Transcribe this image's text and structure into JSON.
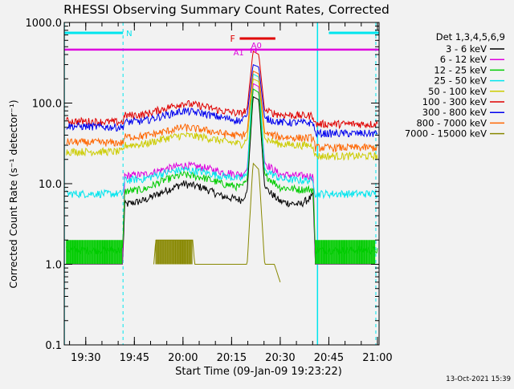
{
  "chart_data": {
    "type": "line",
    "title": "RHESSI Observing Summary Count Rates, Corrected",
    "xlabel": "Start Time (09-Jan-09 19:23:22)",
    "ylabel": "Corrected Count Rate (s⁻¹ detector⁻¹)",
    "yscale": "log",
    "ylim": [
      0.1,
      1000
    ],
    "xlim": [
      "19:23:22",
      "21:00:30"
    ],
    "xticks": [
      "19:30",
      "19:45",
      "20:00",
      "20:15",
      "20:30",
      "20:45",
      "21:00"
    ],
    "yticks": [
      "0.1",
      "1.0",
      "10.0",
      "100.0",
      "1000.0"
    ],
    "legend_title": "Det 1,3,4,5,6,9",
    "legend_position": "right",
    "grid": false,
    "footer_date": "13-Oct-2021 15:39",
    "flags": {
      "night": {
        "label": "N",
        "intervals": [
          [
            "19:23:22",
            "19:41:30"
          ],
          [
            "20:45:00",
            "21:00:30"
          ]
        ],
        "color": "#00e5ee"
      },
      "attenuator_level": 460,
      "flare": {
        "label": "F",
        "interval": [
          "20:17:30",
          "20:28:30"
        ],
        "color": "#e00000"
      },
      "attenuator": {
        "labels": [
          "A1",
          "A0"
        ],
        "marks": [
          "20:21:00",
          "20:22:30"
        ],
        "color": "#dd00dd"
      }
    },
    "shutter_markers": {
      "solid": [
        "19:23:22",
        "20:41:30"
      ],
      "dashed": [
        "19:41:30",
        "20:59:30"
      ],
      "color": "#00e5ee"
    },
    "series": [
      {
        "name": "3 - 6 keV",
        "color": "#000000",
        "values_by_time": [
          [
            19.4,
            1.0
          ],
          [
            19.69,
            1.0
          ],
          [
            19.7,
            5.5
          ],
          [
            19.8,
            6.2
          ],
          [
            19.9,
            8.0
          ],
          [
            20.0,
            10.0
          ],
          [
            20.1,
            9.0
          ],
          [
            20.2,
            7.0
          ],
          [
            20.3,
            6.3
          ],
          [
            20.33,
            8.0
          ],
          [
            20.36,
            120
          ],
          [
            20.39,
            110
          ],
          [
            20.42,
            9.0
          ],
          [
            20.5,
            6.0
          ],
          [
            20.6,
            5.5
          ],
          [
            20.67,
            7.0
          ],
          [
            20.68,
            1.0
          ],
          [
            21.0,
            1.0
          ]
        ]
      },
      {
        "name": "6 - 12 keV",
        "color": "#dd00dd",
        "values_by_time": [
          [
            19.4,
            1.0
          ],
          [
            19.69,
            1.0
          ],
          [
            19.7,
            12.5
          ],
          [
            19.8,
            13.0
          ],
          [
            19.9,
            15.0
          ],
          [
            20.0,
            17.0
          ],
          [
            20.1,
            16.0
          ],
          [
            20.2,
            14.0
          ],
          [
            20.3,
            13.0
          ],
          [
            20.33,
            15.0
          ],
          [
            20.36,
            175
          ],
          [
            20.39,
            160
          ],
          [
            20.42,
            18.0
          ],
          [
            20.5,
            13.0
          ],
          [
            20.6,
            12.5
          ],
          [
            20.67,
            12.5
          ],
          [
            20.68,
            1.0
          ],
          [
            21.0,
            1.0
          ]
        ]
      },
      {
        "name": "12 - 25 keV",
        "color": "#00cc00",
        "values_by_time": [
          [
            19.4,
            1.5
          ],
          [
            19.69,
            1.5
          ],
          [
            19.7,
            8.0
          ],
          [
            19.8,
            8.5
          ],
          [
            19.9,
            11.0
          ],
          [
            20.0,
            13.0
          ],
          [
            20.1,
            12.0
          ],
          [
            20.2,
            10.0
          ],
          [
            20.3,
            9.0
          ],
          [
            20.33,
            11.0
          ],
          [
            20.36,
            150
          ],
          [
            20.39,
            135
          ],
          [
            20.42,
            13.0
          ],
          [
            20.5,
            9.0
          ],
          [
            20.6,
            8.5
          ],
          [
            20.67,
            8.5
          ],
          [
            20.68,
            1.5
          ],
          [
            21.0,
            1.5
          ]
        ]
      },
      {
        "name": "25 - 50 keV",
        "color": "#00e5ee",
        "values_by_time": [
          [
            19.4,
            7.5
          ],
          [
            19.69,
            7.5
          ],
          [
            19.7,
            11.0
          ],
          [
            19.8,
            11.5
          ],
          [
            19.9,
            13.5
          ],
          [
            20.0,
            15.0
          ],
          [
            20.1,
            14.0
          ],
          [
            20.2,
            12.5
          ],
          [
            20.3,
            11.5
          ],
          [
            20.33,
            13.0
          ],
          [
            20.36,
            230
          ],
          [
            20.39,
            210
          ],
          [
            20.42,
            15.0
          ],
          [
            20.5,
            11.5
          ],
          [
            20.6,
            11.0
          ],
          [
            20.67,
            11.0
          ],
          [
            20.68,
            7.5
          ],
          [
            21.0,
            7.5
          ]
        ]
      },
      {
        "name": "50 - 100 keV",
        "color": "#cccc00",
        "values_by_time": [
          [
            19.4,
            25
          ],
          [
            19.69,
            25
          ],
          [
            19.7,
            30
          ],
          [
            19.8,
            31
          ],
          [
            19.9,
            36
          ],
          [
            20.0,
            40
          ],
          [
            20.1,
            38
          ],
          [
            20.2,
            34
          ],
          [
            20.3,
            31
          ],
          [
            20.33,
            35
          ],
          [
            20.36,
            200
          ],
          [
            20.39,
            185
          ],
          [
            20.42,
            36
          ],
          [
            20.5,
            31
          ],
          [
            20.6,
            30
          ],
          [
            20.67,
            30
          ],
          [
            20.68,
            22
          ],
          [
            21.0,
            22
          ]
        ]
      },
      {
        "name": "100 - 300 keV",
        "color": "#e00000",
        "values_by_time": [
          [
            19.4,
            60
          ],
          [
            19.69,
            58
          ],
          [
            19.7,
            70
          ],
          [
            19.8,
            72
          ],
          [
            19.9,
            85
          ],
          [
            20.0,
            100
          ],
          [
            20.1,
            92
          ],
          [
            20.2,
            80
          ],
          [
            20.3,
            74
          ],
          [
            20.33,
            85
          ],
          [
            20.36,
            440
          ],
          [
            20.39,
            400
          ],
          [
            20.42,
            80
          ],
          [
            20.5,
            72
          ],
          [
            20.6,
            70
          ],
          [
            20.67,
            70
          ],
          [
            20.68,
            55
          ],
          [
            21.0,
            55
          ]
        ]
      },
      {
        "name": "300 - 800 keV",
        "color": "#0000ee",
        "values_by_time": [
          [
            19.4,
            52
          ],
          [
            19.69,
            50
          ],
          [
            19.7,
            58
          ],
          [
            19.8,
            60
          ],
          [
            19.9,
            70
          ],
          [
            20.0,
            80
          ],
          [
            20.1,
            75
          ],
          [
            20.2,
            66
          ],
          [
            20.3,
            60
          ],
          [
            20.33,
            70
          ],
          [
            20.36,
            300
          ],
          [
            20.39,
            280
          ],
          [
            20.42,
            65
          ],
          [
            20.5,
            58
          ],
          [
            20.6,
            57
          ],
          [
            20.67,
            57
          ],
          [
            20.68,
            42
          ],
          [
            21.0,
            42
          ]
        ]
      },
      {
        "name": "800 - 7000 keV",
        "color": "#ff6600",
        "values_by_time": [
          [
            19.4,
            33
          ],
          [
            19.69,
            32
          ],
          [
            19.7,
            38
          ],
          [
            19.8,
            39
          ],
          [
            19.9,
            44
          ],
          [
            20.0,
            50
          ],
          [
            20.1,
            47
          ],
          [
            20.2,
            42
          ],
          [
            20.3,
            39
          ],
          [
            20.33,
            44
          ],
          [
            20.36,
            250
          ],
          [
            20.39,
            230
          ],
          [
            20.42,
            42
          ],
          [
            20.5,
            38
          ],
          [
            20.6,
            37
          ],
          [
            20.67,
            37
          ],
          [
            20.68,
            28
          ],
          [
            21.0,
            28
          ]
        ]
      },
      {
        "name": "7000 - 15000 keV",
        "color": "#888800",
        "values_by_time": [
          [
            19.85,
            1.0
          ],
          [
            19.86,
            2.0
          ],
          [
            20.05,
            2.0
          ],
          [
            20.06,
            1.0
          ],
          [
            20.33,
            1.0
          ],
          [
            20.36,
            18
          ],
          [
            20.39,
            15
          ],
          [
            20.42,
            1.0
          ],
          [
            20.47,
            1.0
          ],
          [
            20.5,
            0.6
          ]
        ]
      }
    ]
  }
}
